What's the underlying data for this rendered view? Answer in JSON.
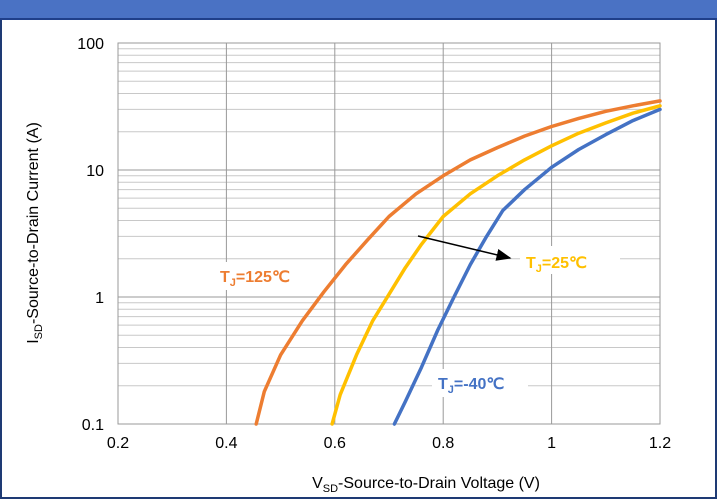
{
  "chart_data": {
    "type": "line",
    "xlabel_main": "V",
    "xlabel_sub": "SD",
    "xlabel_rest": "-Source-to-Drain Voltage (V)",
    "ylabel_main": "I",
    "ylabel_sub": "SD",
    "ylabel_rest": "-Source-to-Drain Current (A)",
    "xlim": [
      0.2,
      1.2
    ],
    "ylim": [
      0.1,
      100
    ],
    "yscale": "log",
    "grid": true,
    "x_ticks": [
      "0.2",
      "0.4",
      "0.6",
      "0.8",
      "1",
      "1.2"
    ],
    "y_ticks": [
      "0.1",
      "1",
      "10",
      "100"
    ],
    "series": [
      {
        "name_main": "T",
        "name_sub": "J",
        "name_rest": "=125℃",
        "color": "#ed7d31",
        "x": [
          0.455,
          0.47,
          0.5,
          0.54,
          0.58,
          0.62,
          0.66,
          0.7,
          0.75,
          0.8,
          0.85,
          0.9,
          0.95,
          1.0,
          1.05,
          1.1,
          1.15,
          1.2
        ],
        "y": [
          0.1,
          0.18,
          0.35,
          0.65,
          1.1,
          1.8,
          2.8,
          4.3,
          6.5,
          9.0,
          12,
          15,
          18.5,
          22,
          25.5,
          29,
          32,
          35
        ]
      },
      {
        "name_main": "T",
        "name_sub": "J",
        "name_rest": "=25℃",
        "color": "#ffc000",
        "x": [
          0.595,
          0.61,
          0.64,
          0.67,
          0.7,
          0.73,
          0.76,
          0.8,
          0.85,
          0.9,
          0.95,
          1.0,
          1.05,
          1.1,
          1.15,
          1.2
        ],
        "y": [
          0.1,
          0.17,
          0.35,
          0.65,
          1.05,
          1.7,
          2.6,
          4.3,
          6.5,
          9.0,
          12,
          15.5,
          19.5,
          23.5,
          28,
          32
        ]
      },
      {
        "name_main": "T",
        "name_sub": "J",
        "name_rest": "=-40℃",
        "color": "#4472c4",
        "x": [
          0.71,
          0.73,
          0.76,
          0.79,
          0.82,
          0.85,
          0.88,
          0.91,
          0.95,
          1.0,
          1.05,
          1.1,
          1.15,
          1.2
        ],
        "y": [
          0.1,
          0.15,
          0.28,
          0.55,
          1.0,
          1.8,
          3.0,
          4.8,
          7.0,
          10.5,
          14.5,
          19,
          24.5,
          30
        ]
      }
    ]
  }
}
